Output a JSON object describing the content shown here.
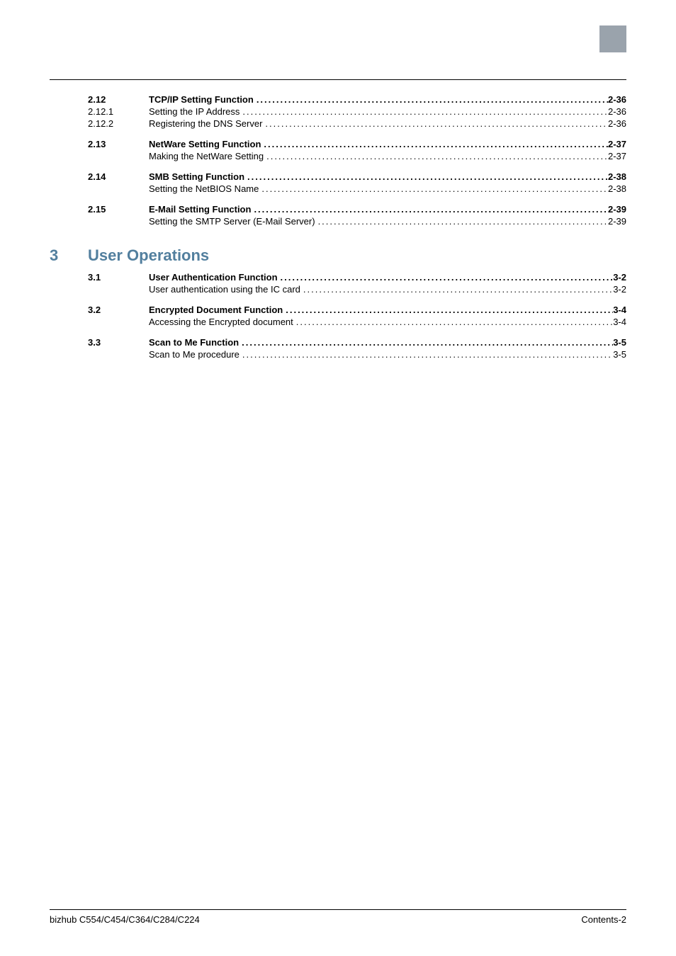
{
  "colors": {
    "corner_block": "#9aa3ac",
    "chapter_heading": "#527f9e",
    "text": "#000000",
    "background": "#ffffff",
    "rule": "#000000"
  },
  "typography": {
    "body_font": "Arial",
    "body_size_pt": 10,
    "chapter_size_pt": 16,
    "chapter_weight": "bold"
  },
  "leader_fill": "................................................................................................................................................................................................................................................",
  "toc_upper": [
    {
      "num": "2.12",
      "title": "TCP/IP Setting Function",
      "page": "2-36",
      "bold": true
    },
    {
      "num": "2.12.1",
      "title": "Setting the IP Address",
      "page": "2-36",
      "bold": false
    },
    {
      "num": "2.12.2",
      "title": "Registering the DNS Server",
      "page": "2-36",
      "bold": false
    },
    {
      "num": "2.13",
      "title": "NetWare Setting Function",
      "page": "2-37",
      "bold": true
    },
    {
      "num": "",
      "title": "Making the NetWare Setting",
      "page": "2-37",
      "bold": false
    },
    {
      "num": "2.14",
      "title": "SMB Setting Function",
      "page": "2-38",
      "bold": true
    },
    {
      "num": "",
      "title": "Setting the NetBIOS Name",
      "page": "2-38",
      "bold": false
    },
    {
      "num": "2.15",
      "title": "E-Mail Setting Function",
      "page": "2-39",
      "bold": true
    },
    {
      "num": "",
      "title": "Setting the SMTP Server (E-Mail Server)",
      "page": "2-39",
      "bold": false
    }
  ],
  "chapter": {
    "number": "3",
    "title": "User Operations"
  },
  "toc_lower": [
    {
      "num": "3.1",
      "title": "User Authentication Function",
      "page": "3-2",
      "bold": true
    },
    {
      "num": "",
      "title": "User authentication using the IC card",
      "page": "3-2",
      "bold": false
    },
    {
      "num": "3.2",
      "title": "Encrypted Document Function",
      "page": "3-4",
      "bold": true
    },
    {
      "num": "",
      "title": "Accessing the Encrypted document",
      "page": "3-4",
      "bold": false
    },
    {
      "num": "3.3",
      "title": "Scan to Me Function",
      "page": "3-5",
      "bold": true
    },
    {
      "num": "",
      "title": "Scan to Me procedure",
      "page": "3-5",
      "bold": false
    }
  ],
  "footer": {
    "left": "bizhub C554/C454/C364/C284/C224",
    "right": "Contents-2"
  }
}
